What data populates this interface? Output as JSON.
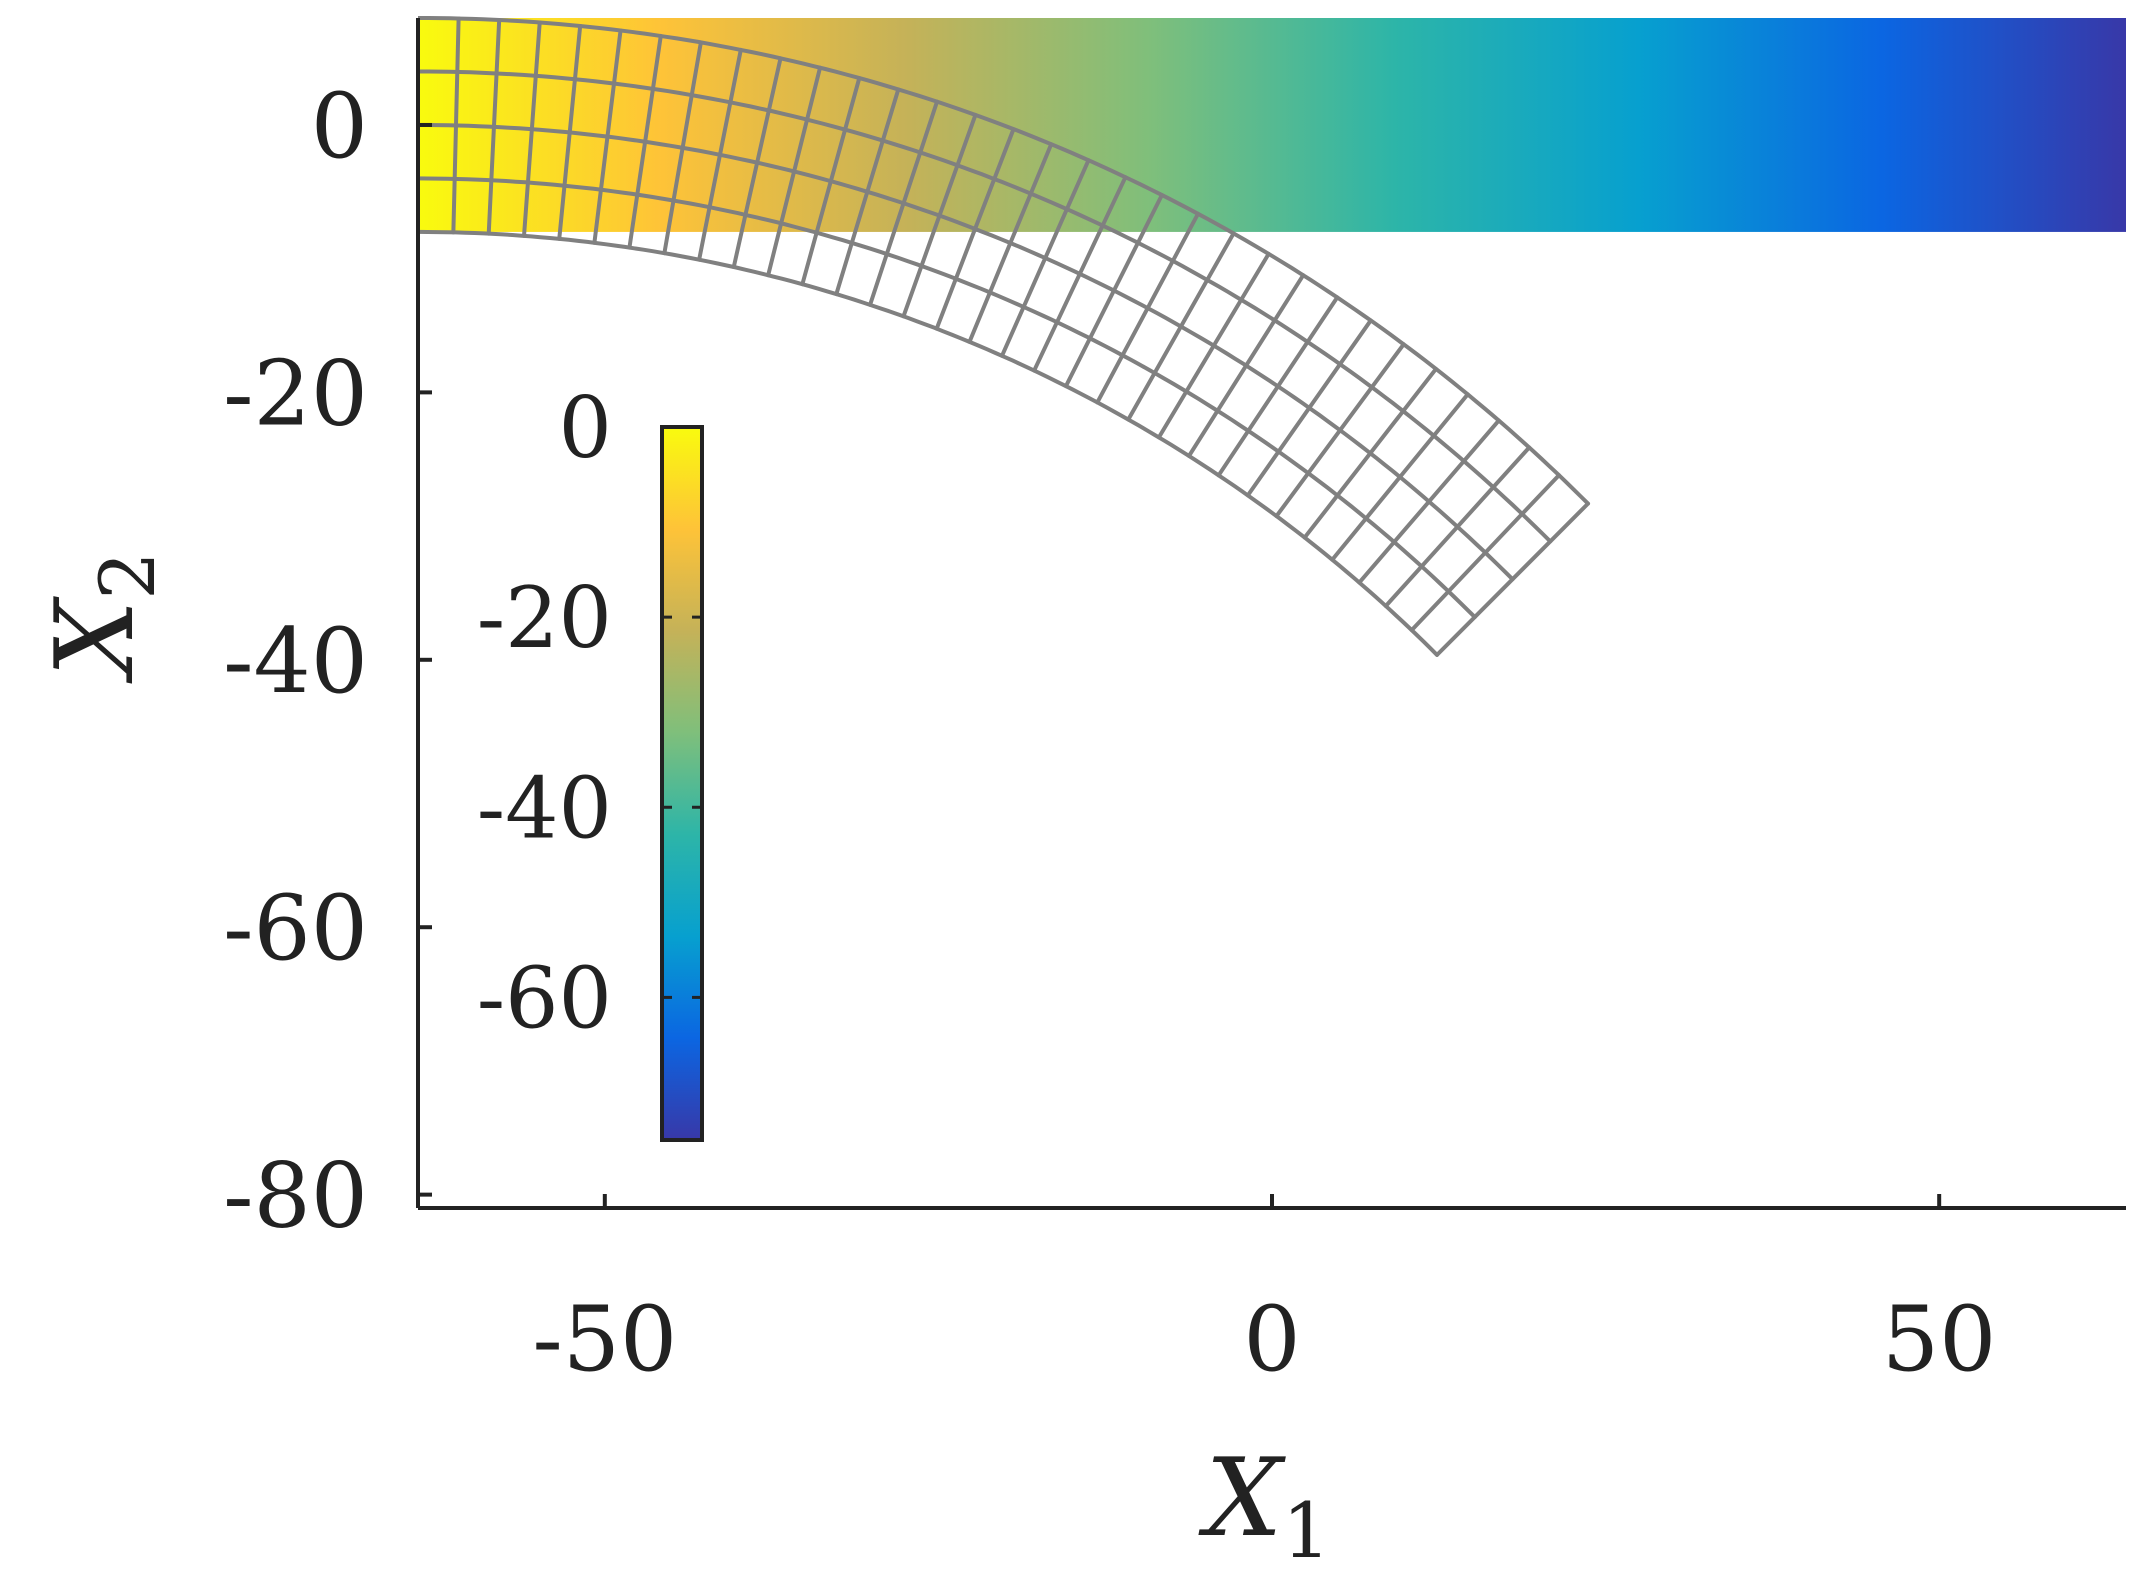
{
  "chart_data": {
    "type": "heatmap",
    "title": "",
    "xlabel": {
      "symbol": "X",
      "subscript": "1"
    },
    "ylabel": {
      "symbol": "X",
      "subscript": "2"
    },
    "xlim": [
      -64,
      64
    ],
    "ylim": [
      -81,
      8
    ],
    "xticks": [
      -50,
      0,
      50
    ],
    "xtick_labels": [
      "-50",
      "0",
      "50"
    ],
    "yticks": [
      0,
      -20,
      -40,
      -60,
      -80
    ],
    "ytick_labels": [
      "0",
      "-20",
      "-40",
      "-60",
      "-80"
    ],
    "grid": false,
    "colormap": "parula",
    "colormap_stops": [
      "#f9fb0e",
      "#fec338",
      "#c5b258",
      "#7fbf7b",
      "#2db5a8",
      "#07a0cf",
      "#0b66e2",
      "#3838a8"
    ],
    "field": {
      "description_of_values": "colored undeformed bar, value varies with X1",
      "x_range": [
        -64,
        64
      ],
      "y_range": [
        -8,
        8
      ],
      "value_at_xmin": 0,
      "value_at_xmax": -75
    },
    "colorbar": {
      "range": [
        -75,
        0
      ],
      "ticks": [
        0,
        -20,
        -40,
        -60
      ],
      "tick_labels": [
        "0",
        "-20",
        "-40",
        "-60"
      ]
    },
    "deformed_mesh": {
      "color": "#808080",
      "columns": 32,
      "rows": 4,
      "arc_center": [
        -64,
        -116
      ],
      "outer_radius": 124,
      "inner_radius": 108,
      "end_angle_deg": 45
    }
  }
}
